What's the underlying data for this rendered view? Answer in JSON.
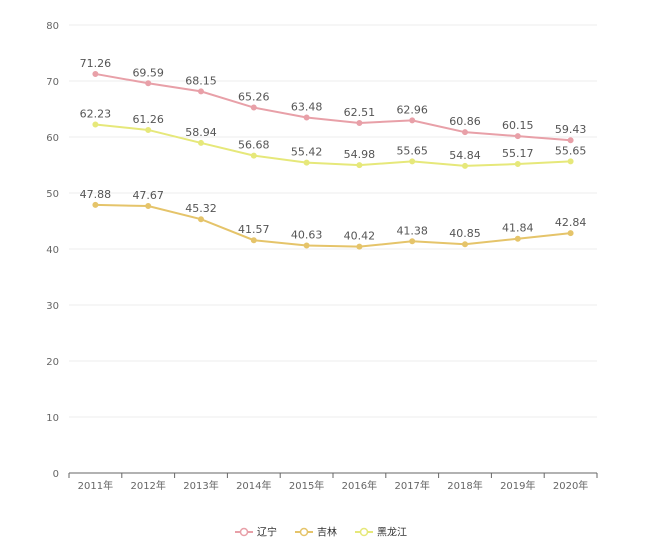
{
  "chart_data": {
    "type": "line",
    "title": "",
    "xlabel": "",
    "ylabel": "",
    "categories": [
      "2011年",
      "2012年",
      "2013年",
      "2014年",
      "2015年",
      "2016年",
      "2017年",
      "2018年",
      "2019年",
      "2020年"
    ],
    "ylim": [
      0,
      80
    ],
    "yticks": [
      0,
      10,
      20,
      30,
      40,
      50,
      60,
      70,
      80
    ],
    "grid": true,
    "legend_position": "bottom-center",
    "series": [
      {
        "name": "辽宁",
        "color": "#e8a0a8",
        "values": [
          71.26,
          69.59,
          68.15,
          65.26,
          63.48,
          62.51,
          62.96,
          60.86,
          60.15,
          59.43
        ]
      },
      {
        "name": "吉林",
        "color": "#e5c46a",
        "values": [
          47.88,
          47.67,
          45.32,
          41.57,
          40.63,
          40.42,
          41.38,
          40.85,
          41.84,
          42.84
        ]
      },
      {
        "name": "黑龙江",
        "color": "#e6e87a",
        "values": [
          62.23,
          61.26,
          58.94,
          56.68,
          55.42,
          54.98,
          55.65,
          54.84,
          55.17,
          55.65
        ]
      }
    ]
  }
}
